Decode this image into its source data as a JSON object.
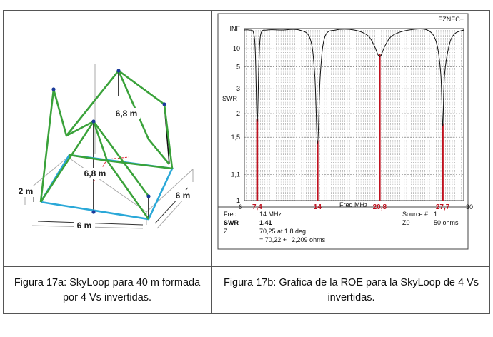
{
  "figure_a": {
    "labels": {
      "height": "2 m",
      "side_front": "6 m",
      "side_right": "6 m",
      "peak_back": "6,8 m",
      "peak_front": "6,8 m"
    },
    "caption": "Figura 17a: SkyLoop para 40 m formada por 4 Vs invertidas."
  },
  "figure_b": {
    "caption": "Figura 17b: Grafica de la ROE para la SkyLoop de 4 Vs invertidas.",
    "software": "EZNEC+",
    "panel": {
      "freq_label": "Freq",
      "freq_value": "14 MHz",
      "swr_label": "SWR",
      "swr_value": "1,41",
      "z_label": "Z",
      "z_value1": "70,25 at 1,8 deg.",
      "z_value2": "= 70,22 + j 2,209 ohms",
      "source_label": "Source #",
      "source_value": "1",
      "z0_label": "Z0",
      "z0_value": "50 ohms"
    }
  },
  "chart_data": {
    "type": "line",
    "ylabel": "SWR",
    "xlabel": "Freq MHz",
    "xlim": [
      6,
      30
    ],
    "y_ticks": [
      "INF",
      "10",
      "5",
      "3",
      "2",
      "1,5",
      "1,1",
      "1"
    ],
    "x_ticks": [
      "6",
      "30"
    ],
    "marker_labels": [
      "7,4",
      "14",
      "20,8",
      "27,7"
    ],
    "series": [
      {
        "x": [
          6.0,
          6.5,
          7.0,
          7.2,
          7.4,
          7.6,
          7.8,
          8.5,
          10,
          12,
          13.2,
          13.7,
          14.0,
          14.3,
          14.8,
          16,
          18,
          19.5,
          20.2,
          20.8,
          21.4,
          22.2,
          24,
          26,
          27.0,
          27.5,
          27.7,
          27.9,
          28.4,
          29,
          30
        ],
        "y": [
          1000,
          500,
          50,
          8,
          1.8,
          6,
          40,
          300,
          900,
          300,
          20,
          4,
          1.41,
          4,
          25,
          300,
          400,
          30,
          12,
          7,
          12,
          30,
          400,
          150,
          15,
          4,
          1.7,
          4,
          12,
          40,
          300
        ]
      }
    ],
    "markers": [
      {
        "x": 7.4,
        "y": 1.8
      },
      {
        "x": 14,
        "y": 1.41
      },
      {
        "x": 20.8,
        "y": 7
      },
      {
        "x": 27.7,
        "y": 1.7
      }
    ]
  }
}
